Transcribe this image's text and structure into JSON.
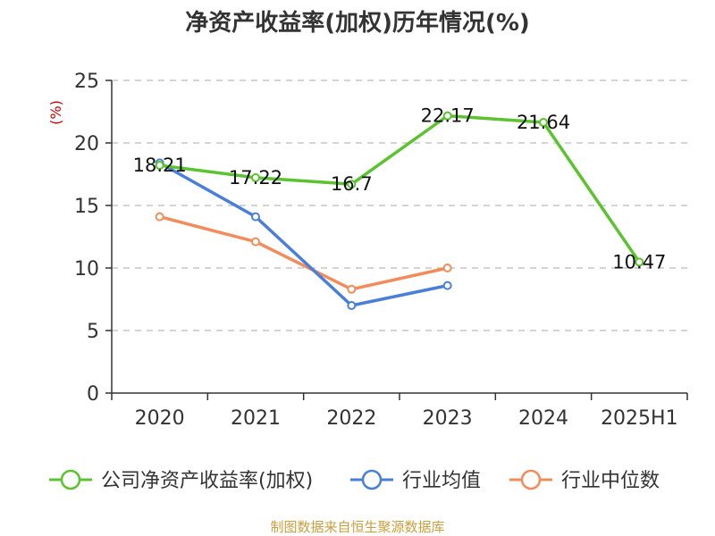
{
  "chart_data": {
    "type": "line",
    "title": "净资产收益率(加权)历年情况(%)",
    "ylabel": "(%)",
    "xlabel": "",
    "categories": [
      "2020",
      "2021",
      "2022",
      "2023",
      "2024",
      "2025H1"
    ],
    "ylim": [
      0,
      25
    ],
    "yticks": [
      0,
      5,
      10,
      15,
      20,
      25
    ],
    "grid": true,
    "legend_position": "bottom",
    "series": [
      {
        "name": "公司净资产收益率(加权)",
        "color": "#5cc330",
        "values": [
          18.21,
          17.22,
          16.7,
          22.17,
          21.64,
          10.47
        ],
        "labels": [
          "18.21",
          "17.22",
          "16.7",
          "22.17",
          "21.64",
          "10.47"
        ],
        "show_labels": true
      },
      {
        "name": "行业均值",
        "color": "#4a7fd9",
        "values": [
          18.4,
          14.1,
          7.0,
          8.6,
          null,
          null
        ],
        "show_labels": false
      },
      {
        "name": "行业中位数",
        "color": "#f28c5a",
        "values": [
          14.1,
          12.1,
          8.3,
          10.0,
          null,
          null
        ],
        "show_labels": false
      }
    ]
  },
  "source_note": "制图数据来自恒生聚源数据库"
}
